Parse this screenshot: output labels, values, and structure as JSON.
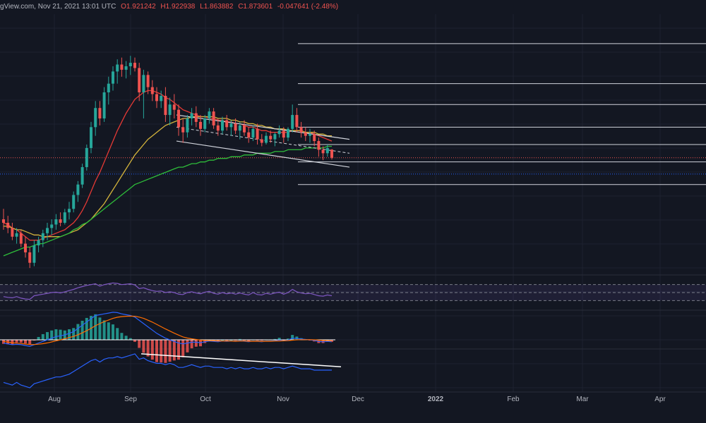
{
  "header": {
    "source": "gView.com, Nov 21, 2021 13:01 UTC",
    "open": "O1.921242",
    "high": "H1.922938",
    "low": "L1.863882",
    "close": "C1.873601",
    "change": "-0.047641 (-2.48%)"
  },
  "colors": {
    "background": "#131722",
    "up": "#26a69a",
    "down": "#ef5350",
    "ma_fast": "#e53935",
    "ma_mid": "#d4b43c",
    "ma_slow": "#2ebd3a",
    "rsi": "#7e57c2",
    "macd": "#2962ff",
    "signal": "#ff6d00",
    "obv": "#2962ff",
    "levels": "#d1d4dc"
  },
  "chart_data": {
    "type": "candlestick",
    "x_ticks": [
      "Aug",
      "Sep",
      "Oct",
      "Nov",
      "Dec",
      "2022",
      "Feb",
      "Mar",
      "Apr"
    ],
    "candles": [
      {
        "o": 1.52,
        "h": 1.58,
        "l": 1.46,
        "c": 1.5
      },
      {
        "o": 1.5,
        "h": 1.54,
        "l": 1.44,
        "c": 1.47
      },
      {
        "o": 1.47,
        "h": 1.5,
        "l": 1.4,
        "c": 1.42
      },
      {
        "o": 1.42,
        "h": 1.47,
        "l": 1.38,
        "c": 1.44
      },
      {
        "o": 1.44,
        "h": 1.46,
        "l": 1.36,
        "c": 1.38
      },
      {
        "o": 1.38,
        "h": 1.42,
        "l": 1.3,
        "c": 1.33
      },
      {
        "o": 1.33,
        "h": 1.36,
        "l": 1.24,
        "c": 1.27
      },
      {
        "o": 1.27,
        "h": 1.4,
        "l": 1.25,
        "c": 1.37
      },
      {
        "o": 1.37,
        "h": 1.42,
        "l": 1.33,
        "c": 1.4
      },
      {
        "o": 1.4,
        "h": 1.46,
        "l": 1.36,
        "c": 1.44
      },
      {
        "o": 1.44,
        "h": 1.5,
        "l": 1.4,
        "c": 1.47
      },
      {
        "o": 1.47,
        "h": 1.52,
        "l": 1.43,
        "c": 1.49
      },
      {
        "o": 1.49,
        "h": 1.55,
        "l": 1.46,
        "c": 1.52
      },
      {
        "o": 1.52,
        "h": 1.56,
        "l": 1.48,
        "c": 1.5
      },
      {
        "o": 1.5,
        "h": 1.58,
        "l": 1.49,
        "c": 1.56
      },
      {
        "o": 1.56,
        "h": 1.62,
        "l": 1.52,
        "c": 1.58
      },
      {
        "o": 1.58,
        "h": 1.68,
        "l": 1.56,
        "c": 1.66
      },
      {
        "o": 1.66,
        "h": 1.74,
        "l": 1.62,
        "c": 1.72
      },
      {
        "o": 1.72,
        "h": 1.84,
        "l": 1.7,
        "c": 1.82
      },
      {
        "o": 1.82,
        "h": 1.95,
        "l": 1.8,
        "c": 1.93
      },
      {
        "o": 1.93,
        "h": 2.08,
        "l": 1.9,
        "c": 2.05
      },
      {
        "o": 2.05,
        "h": 2.2,
        "l": 2.0,
        "c": 2.16
      },
      {
        "o": 2.16,
        "h": 2.2,
        "l": 2.06,
        "c": 2.1
      },
      {
        "o": 2.1,
        "h": 2.28,
        "l": 2.08,
        "c": 2.25
      },
      {
        "o": 2.25,
        "h": 2.34,
        "l": 2.18,
        "c": 2.3
      },
      {
        "o": 2.3,
        "h": 2.4,
        "l": 2.26,
        "c": 2.37
      },
      {
        "o": 2.37,
        "h": 2.44,
        "l": 2.3,
        "c": 2.41
      },
      {
        "o": 2.41,
        "h": 2.45,
        "l": 2.34,
        "c": 2.38
      },
      {
        "o": 2.38,
        "h": 2.43,
        "l": 2.33,
        "c": 2.4
      },
      {
        "o": 2.4,
        "h": 2.46,
        "l": 2.35,
        "c": 2.42
      },
      {
        "o": 2.42,
        "h": 2.45,
        "l": 2.37,
        "c": 2.39
      },
      {
        "o": 2.39,
        "h": 2.42,
        "l": 2.2,
        "c": 2.25
      },
      {
        "o": 2.25,
        "h": 2.38,
        "l": 2.1,
        "c": 2.35
      },
      {
        "o": 2.35,
        "h": 2.37,
        "l": 2.24,
        "c": 2.28
      },
      {
        "o": 2.28,
        "h": 2.32,
        "l": 2.2,
        "c": 2.24
      },
      {
        "o": 2.24,
        "h": 2.28,
        "l": 2.16,
        "c": 2.2
      },
      {
        "o": 2.2,
        "h": 2.26,
        "l": 2.16,
        "c": 2.23
      },
      {
        "o": 2.23,
        "h": 2.28,
        "l": 2.08,
        "c": 2.12
      },
      {
        "o": 2.12,
        "h": 2.22,
        "l": 2.06,
        "c": 2.18
      },
      {
        "o": 2.18,
        "h": 2.24,
        "l": 2.1,
        "c": 2.15
      },
      {
        "o": 2.15,
        "h": 2.18,
        "l": 2.0,
        "c": 2.05
      },
      {
        "o": 2.05,
        "h": 2.1,
        "l": 1.96,
        "c": 2.02
      },
      {
        "o": 2.02,
        "h": 2.12,
        "l": 1.99,
        "c": 2.1
      },
      {
        "o": 2.1,
        "h": 2.16,
        "l": 2.06,
        "c": 2.13
      },
      {
        "o": 2.13,
        "h": 2.17,
        "l": 2.05,
        "c": 2.08
      },
      {
        "o": 2.08,
        "h": 2.12,
        "l": 2.0,
        "c": 2.04
      },
      {
        "o": 2.04,
        "h": 2.12,
        "l": 2.02,
        "c": 2.1
      },
      {
        "o": 2.1,
        "h": 2.16,
        "l": 2.07,
        "c": 2.14
      },
      {
        "o": 2.14,
        "h": 2.16,
        "l": 2.04,
        "c": 2.06
      },
      {
        "o": 2.06,
        "h": 2.1,
        "l": 2.0,
        "c": 2.03
      },
      {
        "o": 2.03,
        "h": 2.11,
        "l": 2.01,
        "c": 2.09
      },
      {
        "o": 2.09,
        "h": 2.12,
        "l": 2.03,
        "c": 2.05
      },
      {
        "o": 2.05,
        "h": 2.09,
        "l": 2.0,
        "c": 2.07
      },
      {
        "o": 2.07,
        "h": 2.1,
        "l": 2.01,
        "c": 2.03
      },
      {
        "o": 2.03,
        "h": 2.08,
        "l": 1.98,
        "c": 2.06
      },
      {
        "o": 2.06,
        "h": 2.09,
        "l": 2.0,
        "c": 2.02
      },
      {
        "o": 2.02,
        "h": 2.05,
        "l": 1.96,
        "c": 1.99
      },
      {
        "o": 1.99,
        "h": 2.06,
        "l": 1.97,
        "c": 2.04
      },
      {
        "o": 2.04,
        "h": 2.07,
        "l": 1.95,
        "c": 1.98
      },
      {
        "o": 1.98,
        "h": 2.01,
        "l": 1.94,
        "c": 1.96
      },
      {
        "o": 1.96,
        "h": 2.02,
        "l": 1.95,
        "c": 2.0
      },
      {
        "o": 2.0,
        "h": 2.03,
        "l": 1.96,
        "c": 1.98
      },
      {
        "o": 1.98,
        "h": 2.02,
        "l": 1.94,
        "c": 2.01
      },
      {
        "o": 2.01,
        "h": 2.06,
        "l": 1.99,
        "c": 2.03
      },
      {
        "o": 2.03,
        "h": 2.05,
        "l": 1.96,
        "c": 1.99
      },
      {
        "o": 1.99,
        "h": 2.05,
        "l": 1.97,
        "c": 2.04
      },
      {
        "o": 2.04,
        "h": 2.18,
        "l": 2.02,
        "c": 2.12
      },
      {
        "o": 2.12,
        "h": 2.16,
        "l": 2.02,
        "c": 2.05
      },
      {
        "o": 2.05,
        "h": 2.08,
        "l": 1.99,
        "c": 2.02
      },
      {
        "o": 2.02,
        "h": 2.05,
        "l": 1.97,
        "c": 2.0
      },
      {
        "o": 2.0,
        "h": 2.04,
        "l": 1.96,
        "c": 2.01
      },
      {
        "o": 2.01,
        "h": 2.03,
        "l": 1.94,
        "c": 1.97
      },
      {
        "o": 1.97,
        "h": 1.99,
        "l": 1.88,
        "c": 1.92
      },
      {
        "o": 1.92,
        "h": 1.94,
        "l": 1.86,
        "c": 1.9
      },
      {
        "o": 1.9,
        "h": 1.95,
        "l": 1.88,
        "c": 1.93
      },
      {
        "o": 1.921,
        "h": 1.923,
        "l": 1.864,
        "c": 1.874
      }
    ],
    "moving_averages": [
      {
        "name": "",
        "color": "#e53935",
        "values": [
          1.5,
          1.49,
          1.47,
          1.46,
          1.44,
          1.42,
          1.4,
          1.4,
          1.4,
          1.41,
          1.42,
          1.43,
          1.44,
          1.45,
          1.46,
          1.48,
          1.5,
          1.53,
          1.57,
          1.62,
          1.68,
          1.74,
          1.79,
          1.85,
          1.91,
          1.97,
          2.03,
          2.08,
          2.13,
          2.17,
          2.21,
          2.23,
          2.25,
          2.26,
          2.26,
          2.25,
          2.24,
          2.22,
          2.21,
          2.19,
          2.17,
          2.15,
          2.14,
          2.13,
          2.12,
          2.11,
          2.11,
          2.1,
          2.1,
          2.09,
          2.09,
          2.08,
          2.08,
          2.07,
          2.07,
          2.06,
          2.05,
          2.05,
          2.04,
          2.03,
          2.03,
          2.02,
          2.02,
          2.02,
          2.02,
          2.02,
          2.03,
          2.03,
          2.03,
          2.02,
          2.02,
          2.01,
          2.0,
          1.99,
          1.98,
          1.97
        ]
      },
      {
        "name": "",
        "color": "#d4b43c",
        "values": [
          1.48,
          1.48,
          1.47,
          1.46,
          1.46,
          1.45,
          1.44,
          1.43,
          1.43,
          1.42,
          1.42,
          1.42,
          1.42,
          1.42,
          1.43,
          1.44,
          1.45,
          1.46,
          1.48,
          1.5,
          1.52,
          1.55,
          1.58,
          1.61,
          1.65,
          1.69,
          1.73,
          1.77,
          1.81,
          1.85,
          1.89,
          1.92,
          1.95,
          1.98,
          2.0,
          2.02,
          2.04,
          2.06,
          2.07,
          2.08,
          2.09,
          2.1,
          2.1,
          2.11,
          2.11,
          2.11,
          2.11,
          2.11,
          2.11,
          2.1,
          2.1,
          2.1,
          2.09,
          2.09,
          2.08,
          2.08,
          2.07,
          2.07,
          2.06,
          2.06,
          2.05,
          2.05,
          2.04,
          2.04,
          2.04,
          2.03,
          2.03,
          2.03,
          2.03,
          2.02,
          2.02,
          2.02,
          2.01,
          2.01,
          2.0,
          2.0
        ]
      },
      {
        "name": "",
        "color": "#2ebd3a",
        "values": [
          1.31,
          1.32,
          1.33,
          1.34,
          1.35,
          1.36,
          1.36,
          1.37,
          1.38,
          1.38,
          1.39,
          1.4,
          1.41,
          1.42,
          1.43,
          1.44,
          1.46,
          1.47,
          1.49,
          1.5,
          1.52,
          1.54,
          1.56,
          1.58,
          1.6,
          1.62,
          1.64,
          1.66,
          1.68,
          1.7,
          1.72,
          1.73,
          1.74,
          1.75,
          1.76,
          1.77,
          1.78,
          1.79,
          1.8,
          1.81,
          1.82,
          1.82,
          1.83,
          1.84,
          1.84,
          1.85,
          1.85,
          1.86,
          1.86,
          1.87,
          1.87,
          1.87,
          1.88,
          1.88,
          1.88,
          1.89,
          1.89,
          1.89,
          1.9,
          1.9,
          1.9,
          1.9,
          1.91,
          1.91,
          1.91,
          1.92,
          1.92,
          1.92,
          1.92,
          1.93,
          1.93,
          1.93,
          1.93,
          1.93,
          1.94,
          1.94
        ]
      }
    ],
    "channel": {
      "upper": [
        2.12,
        1.98
      ],
      "lower": [
        1.97,
        1.82
      ],
      "mid": [
        2.05,
        1.9
      ]
    },
    "levels": [
      2.53,
      2.3,
      2.18,
      2.05,
      1.95,
      1.85,
      1.72
    ],
    "rsi": [
      40,
      38,
      37,
      40,
      36,
      34,
      33,
      42,
      44,
      46,
      48,
      50,
      51,
      49,
      52,
      55,
      58,
      62,
      65,
      68,
      70,
      72,
      66,
      70,
      72,
      74,
      73,
      70,
      71,
      72,
      69,
      60,
      62,
      58,
      55,
      53,
      54,
      50,
      52,
      50,
      46,
      45,
      50,
      52,
      49,
      47,
      51,
      53,
      48,
      46,
      50,
      47,
      49,
      46,
      49,
      46,
      44,
      50,
      45,
      44,
      48,
      46,
      49,
      51,
      46,
      50,
      58,
      52,
      49,
      47,
      48,
      45,
      42,
      41,
      44,
      42
    ],
    "macd": [
      -0.02,
      -0.025,
      -0.03,
      -0.028,
      -0.03,
      -0.035,
      -0.04,
      -0.03,
      -0.02,
      -0.01,
      0.0,
      0.01,
      0.02,
      0.025,
      0.03,
      0.04,
      0.05,
      0.07,
      0.09,
      0.11,
      0.13,
      0.15,
      0.155,
      0.16,
      0.165,
      0.17,
      0.168,
      0.16,
      0.155,
      0.15,
      0.14,
      0.12,
      0.1,
      0.08,
      0.06,
      0.04,
      0.025,
      0.01,
      0.0,
      -0.01,
      -0.02,
      -0.025,
      -0.02,
      -0.015,
      -0.015,
      -0.018,
      -0.012,
      -0.008,
      -0.01,
      -0.012,
      -0.008,
      -0.01,
      -0.008,
      -0.01,
      -0.006,
      -0.009,
      -0.012,
      -0.008,
      -0.01,
      -0.012,
      -0.008,
      -0.008,
      -0.006,
      -0.002,
      -0.005,
      -0.002,
      0.01,
      0.008,
      0.005,
      0.002,
      0.0,
      -0.004,
      -0.01,
      -0.012,
      -0.01,
      -0.012
    ],
    "signal": [
      -0.01,
      -0.014,
      -0.018,
      -0.021,
      -0.023,
      -0.026,
      -0.029,
      -0.029,
      -0.027,
      -0.024,
      -0.019,
      -0.013,
      -0.006,
      0.0,
      0.007,
      0.014,
      0.021,
      0.031,
      0.043,
      0.056,
      0.071,
      0.087,
      0.1,
      0.112,
      0.122,
      0.132,
      0.139,
      0.143,
      0.145,
      0.146,
      0.145,
      0.14,
      0.132,
      0.121,
      0.109,
      0.095,
      0.081,
      0.067,
      0.054,
      0.041,
      0.029,
      0.018,
      0.011,
      0.006,
      0.002,
      -0.002,
      -0.004,
      -0.005,
      -0.006,
      -0.007,
      -0.008,
      -0.008,
      -0.008,
      -0.009,
      -0.008,
      -0.008,
      -0.009,
      -0.009,
      -0.009,
      -0.01,
      -0.009,
      -0.009,
      -0.008,
      -0.007,
      -0.006,
      -0.005,
      -0.002,
      0.0,
      0.001,
      0.001,
      0.001,
      0.0,
      -0.002,
      -0.004,
      -0.005,
      -0.007
    ],
    "obv": [
      10,
      9,
      8,
      10,
      8,
      7,
      6,
      9,
      10,
      11,
      12,
      13,
      14,
      14,
      15,
      16,
      18,
      20,
      22,
      24,
      26,
      27,
      25,
      27,
      28,
      28,
      29,
      28,
      29,
      30,
      31,
      27,
      28,
      26,
      25,
      24,
      24,
      23,
      24,
      23,
      21,
      21,
      22,
      23,
      22,
      21,
      22,
      22,
      21,
      21,
      21,
      20,
      21,
      20,
      21,
      20,
      20,
      21,
      20,
      20,
      21,
      20,
      21,
      21,
      20,
      21,
      22,
      21,
      20,
      20,
      20,
      19,
      19,
      19,
      19,
      19
    ],
    "obv_trendline": [
      31,
      21.5
    ]
  }
}
